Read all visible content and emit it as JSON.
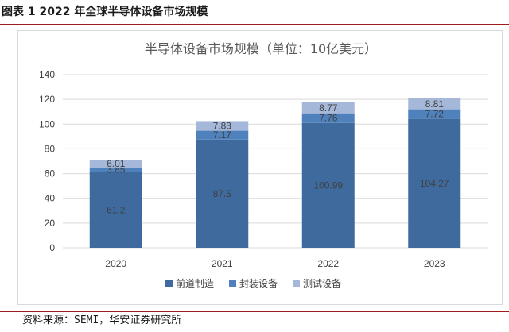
{
  "figure": {
    "caption": "图表 1 2022 年全球半导体设备市场规模",
    "source": "资料来源：SEMI，华安证券研究所"
  },
  "colors": {
    "series": [
      "#3f6a9e",
      "#4f81bd",
      "#a6b8d9"
    ],
    "grid": "#d9d9d9",
    "rule": "#9e1b1b"
  },
  "chart_data": {
    "type": "bar",
    "stacked": true,
    "title": "半导体设备市场规模（单位：10亿美元）",
    "categories": [
      "2020",
      "2021",
      "2022",
      "2023"
    ],
    "series": [
      {
        "name": "前道制造",
        "values": [
          61.2,
          87.5,
          100.99,
          104.27
        ],
        "labels": [
          "61.2",
          "87.5",
          "100.99",
          "104.27"
        ]
      },
      {
        "name": "封装设备",
        "values": [
          3.85,
          7.17,
          7.76,
          7.72
        ],
        "labels": [
          "3.85",
          "7.17",
          "7.76",
          "7.72"
        ]
      },
      {
        "name": "测试设备",
        "values": [
          6.01,
          7.83,
          8.77,
          8.81
        ],
        "labels": [
          "6.01",
          "7.83",
          "8.77",
          "8.81"
        ]
      }
    ],
    "yticks": [
      "0",
      "20",
      "40",
      "60",
      "80",
      "100",
      "120",
      "140"
    ],
    "ylim": [
      0,
      140
    ],
    "grid": true,
    "legend_position": "bottom"
  }
}
